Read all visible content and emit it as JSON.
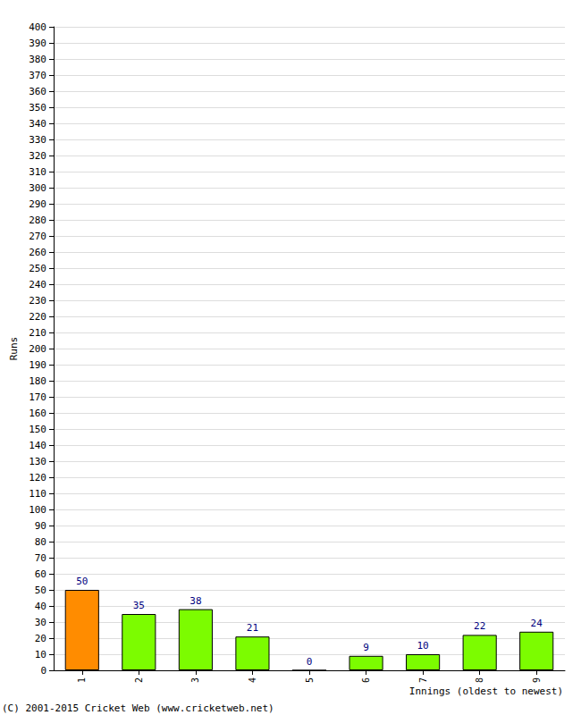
{
  "chart_data": {
    "type": "bar",
    "categories": [
      "1",
      "2",
      "3",
      "4",
      "5",
      "6",
      "7",
      "8",
      "9"
    ],
    "values": [
      50,
      35,
      38,
      21,
      0,
      9,
      10,
      22,
      24
    ],
    "colors": [
      "#ff8c00",
      "#7cfc00",
      "#7cfc00",
      "#7cfc00",
      "#7cfc00",
      "#7cfc00",
      "#7cfc00",
      "#7cfc00",
      "#7cfc00"
    ],
    "x_label": "Innings (oldest to newest)",
    "y_label": "Runs",
    "ylim": [
      0,
      400
    ],
    "yticks": [
      0,
      10,
      20,
      30,
      40,
      50,
      60,
      70,
      80,
      90,
      100,
      110,
      120,
      130,
      140,
      150,
      160,
      170,
      180,
      190,
      200,
      210,
      220,
      230,
      240,
      250,
      260,
      270,
      280,
      290,
      300,
      310,
      320,
      330,
      340,
      350,
      360,
      370,
      380,
      390,
      400
    ],
    "data_labels": true,
    "grid": true,
    "annotations": [
      "(C) 2001-2015 Cricket Web (www.cricketweb.net)"
    ]
  }
}
